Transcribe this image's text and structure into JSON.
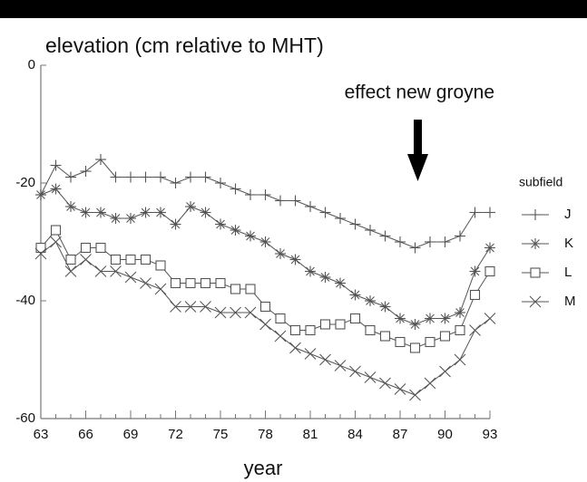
{
  "chart_data": {
    "type": "line",
    "title": "elevation (cm relative to MHT)",
    "x_label": "year",
    "annotation": "effect new groyne",
    "legend_title": "subfield",
    "x": [
      63,
      64,
      65,
      66,
      67,
      68,
      69,
      70,
      71,
      72,
      73,
      74,
      75,
      76,
      77,
      78,
      79,
      80,
      81,
      82,
      83,
      84,
      85,
      86,
      87,
      88,
      89,
      90,
      91,
      92,
      93
    ],
    "series": [
      {
        "name": "J",
        "color": "#555555",
        "marker": "plus",
        "values": [
          -22,
          -17,
          -19,
          -18,
          -16,
          -19,
          -19,
          -19,
          -19,
          -20,
          -19,
          -19,
          -20,
          -21,
          -22,
          -22,
          -23,
          -23,
          -24,
          -25,
          -26,
          -27,
          -28,
          -29,
          -30,
          -31,
          -30,
          -30,
          -29,
          -25,
          -25
        ]
      },
      {
        "name": "K",
        "color": "#555555",
        "marker": "asterisk",
        "values": [
          -22,
          -21,
          -24,
          -25,
          -25,
          -26,
          -26,
          -25,
          -25,
          -27,
          -24,
          -25,
          -27,
          -28,
          -29,
          -30,
          -32,
          -33,
          -35,
          -36,
          -37,
          -39,
          -40,
          -41,
          -43,
          -44,
          -43,
          -43,
          -42,
          -35,
          -31
        ]
      },
      {
        "name": "L",
        "color": "#555555",
        "marker": "square",
        "values": [
          -31,
          -28,
          -33,
          -31,
          -31,
          -33,
          -33,
          -33,
          -34,
          -37,
          -37,
          -37,
          -37,
          -38,
          -38,
          -41,
          -43,
          -45,
          -45,
          -44,
          -44,
          -43,
          -45,
          -46,
          -47,
          -48,
          -47,
          -46,
          -45,
          -39,
          -35
        ]
      },
      {
        "name": "M",
        "color": "#555555",
        "marker": "x",
        "values": [
          -32,
          -30,
          -35,
          -33,
          -35,
          -35,
          -36,
          -37,
          -38,
          -41,
          -41,
          -41,
          -42,
          -42,
          -42,
          -44,
          -46,
          -48,
          -49,
          -50,
          -51,
          -52,
          -53,
          -54,
          -55,
          -56,
          -54,
          -52,
          -50,
          -45,
          -43
        ]
      }
    ],
    "xlim": [
      63,
      93
    ],
    "xticks": [
      63,
      66,
      69,
      72,
      75,
      78,
      81,
      84,
      87,
      90,
      93
    ],
    "ylim": [
      -60,
      0
    ],
    "yticks": [
      0,
      -20,
      -40,
      -60
    ],
    "grid": false,
    "legend": "right"
  }
}
